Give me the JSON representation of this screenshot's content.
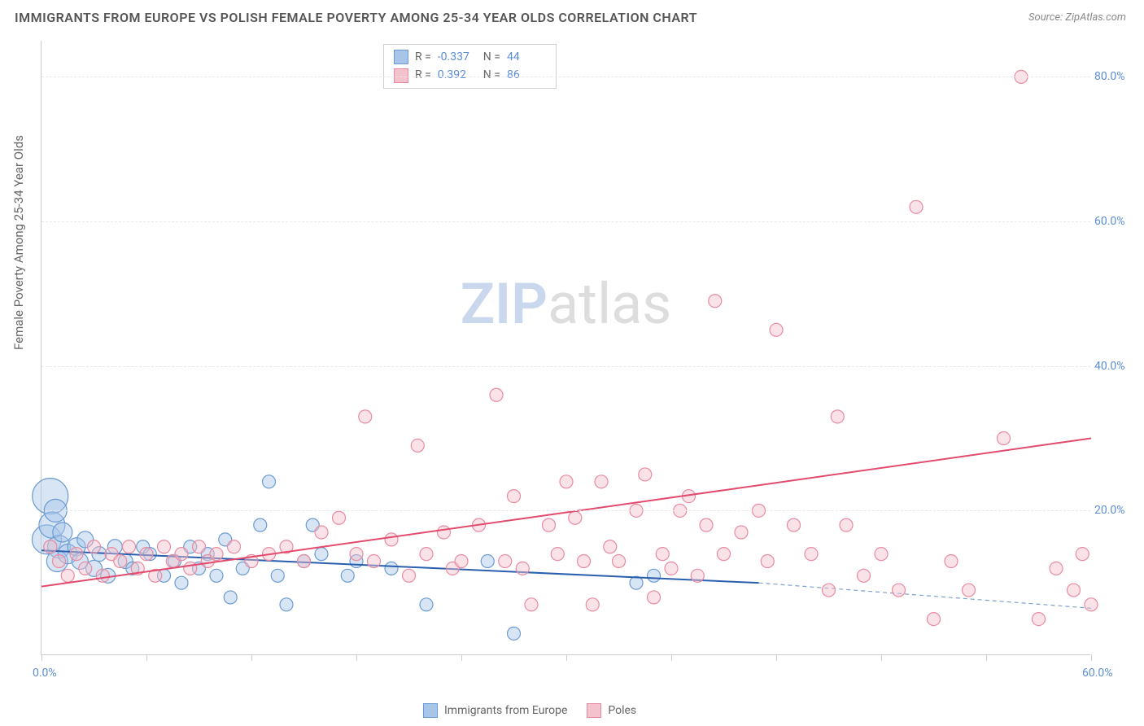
{
  "title": "IMMIGRANTS FROM EUROPE VS POLISH FEMALE POVERTY AMONG 25-34 YEAR OLDS CORRELATION CHART",
  "source": "Source: ZipAtlas.com",
  "watermark": {
    "zip": "ZIP",
    "atlas": "atlas"
  },
  "y_axis_label": "Female Poverty Among 25-34 Year Olds",
  "chart": {
    "type": "scatter",
    "xlim": [
      0,
      60
    ],
    "ylim": [
      0,
      85
    ],
    "x_ticks": [
      0,
      6,
      12,
      18,
      24,
      30,
      36,
      42,
      48,
      54,
      60
    ],
    "x_tick_labels": {
      "0": "0.0%",
      "60": "60.0%"
    },
    "y_ticks": [
      20,
      40,
      60,
      80
    ],
    "y_tick_labels": {
      "20": "20.0%",
      "40": "40.0%",
      "60": "60.0%",
      "80": "80.0%"
    },
    "grid_color": "#e8e8e8",
    "axis_color": "#cccccc",
    "tick_label_color": "#5b8dd6",
    "background_color": "#ffffff",
    "series": [
      {
        "name": "Immigrants from Europe",
        "color_fill": "#a7c5e8",
        "color_stroke": "#6c9bd1",
        "fill_opacity": 0.45,
        "marker_radius": 8,
        "trend": {
          "x1": 0,
          "y1": 14.5,
          "x2": 41,
          "y2": 10.0,
          "dashed_x2": 60,
          "dashed_y2": 6.5,
          "line_color": "#2a5fb0",
          "line_width": 2
        },
        "R": "-0.337",
        "N": "44",
        "points": [
          {
            "x": 0.5,
            "y": 22,
            "r": 22
          },
          {
            "x": 0.3,
            "y": 16,
            "r": 18
          },
          {
            "x": 0.6,
            "y": 18,
            "r": 16
          },
          {
            "x": 0.8,
            "y": 20,
            "r": 14
          },
          {
            "x": 1.0,
            "y": 15,
            "r": 14
          },
          {
            "x": 0.9,
            "y": 13,
            "r": 13
          },
          {
            "x": 1.2,
            "y": 17,
            "r": 12
          },
          {
            "x": 1.5,
            "y": 14,
            "r": 12
          },
          {
            "x": 2.0,
            "y": 15,
            "r": 11
          },
          {
            "x": 2.2,
            "y": 13,
            "r": 10
          },
          {
            "x": 2.5,
            "y": 16,
            "r": 10
          },
          {
            "x": 3.0,
            "y": 12,
            "r": 10
          },
          {
            "x": 3.3,
            "y": 14,
            "r": 9
          },
          {
            "x": 3.8,
            "y": 11,
            "r": 9
          },
          {
            "x": 4.2,
            "y": 15,
            "r": 9
          },
          {
            "x": 4.8,
            "y": 13,
            "r": 9
          },
          {
            "x": 5.2,
            "y": 12,
            "r": 8
          },
          {
            "x": 5.8,
            "y": 15,
            "r": 8
          },
          {
            "x": 6.2,
            "y": 14,
            "r": 8
          },
          {
            "x": 7.0,
            "y": 11,
            "r": 8
          },
          {
            "x": 7.6,
            "y": 13,
            "r": 8
          },
          {
            "x": 8.0,
            "y": 10,
            "r": 8
          },
          {
            "x": 8.5,
            "y": 15,
            "r": 8
          },
          {
            "x": 9.0,
            "y": 12,
            "r": 8
          },
          {
            "x": 9.5,
            "y": 14,
            "r": 8
          },
          {
            "x": 10.0,
            "y": 11,
            "r": 8
          },
          {
            "x": 10.5,
            "y": 16,
            "r": 8
          },
          {
            "x": 10.8,
            "y": 8,
            "r": 8
          },
          {
            "x": 11.5,
            "y": 12,
            "r": 8
          },
          {
            "x": 12.5,
            "y": 18,
            "r": 8
          },
          {
            "x": 13.0,
            "y": 24,
            "r": 8
          },
          {
            "x": 13.5,
            "y": 11,
            "r": 8
          },
          {
            "x": 14.0,
            "y": 7,
            "r": 8
          },
          {
            "x": 15.0,
            "y": 13,
            "r": 8
          },
          {
            "x": 15.5,
            "y": 18,
            "r": 8
          },
          {
            "x": 16.0,
            "y": 14,
            "r": 8
          },
          {
            "x": 17.5,
            "y": 11,
            "r": 8
          },
          {
            "x": 18.0,
            "y": 13,
            "r": 8
          },
          {
            "x": 20.0,
            "y": 12,
            "r": 8
          },
          {
            "x": 22.0,
            "y": 7,
            "r": 8
          },
          {
            "x": 25.5,
            "y": 13,
            "r": 8
          },
          {
            "x": 27.0,
            "y": 3,
            "r": 8
          },
          {
            "x": 34.0,
            "y": 10,
            "r": 8
          },
          {
            "x": 35.0,
            "y": 11,
            "r": 8
          }
        ]
      },
      {
        "name": "Poles",
        "color_fill": "#f4c2cd",
        "color_stroke": "#e88ba0",
        "fill_opacity": 0.45,
        "marker_radius": 8,
        "trend": {
          "x1": 0,
          "y1": 9.5,
          "x2": 60,
          "y2": 30.0,
          "line_color": "#e24a6e",
          "line_width": 2
        },
        "R": "0.392",
        "N": "86",
        "points": [
          {
            "x": 0.5,
            "y": 15,
            "r": 8
          },
          {
            "x": 1.0,
            "y": 13,
            "r": 8
          },
          {
            "x": 1.5,
            "y": 11,
            "r": 8
          },
          {
            "x": 2.0,
            "y": 14,
            "r": 8
          },
          {
            "x": 2.5,
            "y": 12,
            "r": 8
          },
          {
            "x": 3.0,
            "y": 15,
            "r": 8
          },
          {
            "x": 3.5,
            "y": 11,
            "r": 8
          },
          {
            "x": 4.0,
            "y": 14,
            "r": 8
          },
          {
            "x": 4.5,
            "y": 13,
            "r": 8
          },
          {
            "x": 5.0,
            "y": 15,
            "r": 8
          },
          {
            "x": 5.5,
            "y": 12,
            "r": 8
          },
          {
            "x": 6.0,
            "y": 14,
            "r": 8
          },
          {
            "x": 6.5,
            "y": 11,
            "r": 8
          },
          {
            "x": 7.0,
            "y": 15,
            "r": 8
          },
          {
            "x": 7.5,
            "y": 13,
            "r": 8
          },
          {
            "x": 8.0,
            "y": 14,
            "r": 8
          },
          {
            "x": 8.5,
            "y": 12,
            "r": 8
          },
          {
            "x": 9.0,
            "y": 15,
            "r": 8
          },
          {
            "x": 9.5,
            "y": 13,
            "r": 8
          },
          {
            "x": 10.0,
            "y": 14,
            "r": 8
          },
          {
            "x": 11.0,
            "y": 15,
            "r": 8
          },
          {
            "x": 12.0,
            "y": 13,
            "r": 8
          },
          {
            "x": 13.0,
            "y": 14,
            "r": 8
          },
          {
            "x": 14.0,
            "y": 15,
            "r": 8
          },
          {
            "x": 15.0,
            "y": 13,
            "r": 8
          },
          {
            "x": 16.0,
            "y": 17,
            "r": 8
          },
          {
            "x": 17.0,
            "y": 19,
            "r": 8
          },
          {
            "x": 18.0,
            "y": 14,
            "r": 8
          },
          {
            "x": 18.5,
            "y": 33,
            "r": 8
          },
          {
            "x": 19.0,
            "y": 13,
            "r": 8
          },
          {
            "x": 20.0,
            "y": 16,
            "r": 8
          },
          {
            "x": 21.0,
            "y": 11,
            "r": 8
          },
          {
            "x": 21.5,
            "y": 29,
            "r": 8
          },
          {
            "x": 22.0,
            "y": 14,
            "r": 8
          },
          {
            "x": 23.0,
            "y": 17,
            "r": 8
          },
          {
            "x": 23.5,
            "y": 12,
            "r": 8
          },
          {
            "x": 24.0,
            "y": 13,
            "r": 8
          },
          {
            "x": 25.0,
            "y": 18,
            "r": 8
          },
          {
            "x": 26.0,
            "y": 36,
            "r": 8
          },
          {
            "x": 26.5,
            "y": 13,
            "r": 8
          },
          {
            "x": 27.0,
            "y": 22,
            "r": 8
          },
          {
            "x": 27.5,
            "y": 12,
            "r": 8
          },
          {
            "x": 28.0,
            "y": 7,
            "r": 8
          },
          {
            "x": 29.0,
            "y": 18,
            "r": 8
          },
          {
            "x": 29.5,
            "y": 14,
            "r": 8
          },
          {
            "x": 30.0,
            "y": 24,
            "r": 8
          },
          {
            "x": 30.5,
            "y": 19,
            "r": 8
          },
          {
            "x": 31.0,
            "y": 13,
            "r": 8
          },
          {
            "x": 31.5,
            "y": 7,
            "r": 8
          },
          {
            "x": 32.0,
            "y": 24,
            "r": 8
          },
          {
            "x": 32.5,
            "y": 15,
            "r": 8
          },
          {
            "x": 33.0,
            "y": 13,
            "r": 8
          },
          {
            "x": 34.0,
            "y": 20,
            "r": 8
          },
          {
            "x": 34.5,
            "y": 25,
            "r": 8
          },
          {
            "x": 35.0,
            "y": 8,
            "r": 8
          },
          {
            "x": 35.5,
            "y": 14,
            "r": 8
          },
          {
            "x": 36.0,
            "y": 12,
            "r": 8
          },
          {
            "x": 36.5,
            "y": 20,
            "r": 8
          },
          {
            "x": 37.0,
            "y": 22,
            "r": 8
          },
          {
            "x": 37.5,
            "y": 11,
            "r": 8
          },
          {
            "x": 38.0,
            "y": 18,
            "r": 8
          },
          {
            "x": 38.5,
            "y": 49,
            "r": 8
          },
          {
            "x": 39.0,
            "y": 14,
            "r": 8
          },
          {
            "x": 40.0,
            "y": 17,
            "r": 8
          },
          {
            "x": 41.0,
            "y": 20,
            "r": 8
          },
          {
            "x": 41.5,
            "y": 13,
            "r": 8
          },
          {
            "x": 42.0,
            "y": 45,
            "r": 8
          },
          {
            "x": 43.0,
            "y": 18,
            "r": 8
          },
          {
            "x": 44.0,
            "y": 14,
            "r": 8
          },
          {
            "x": 45.0,
            "y": 9,
            "r": 8
          },
          {
            "x": 45.5,
            "y": 33,
            "r": 8
          },
          {
            "x": 46.0,
            "y": 18,
            "r": 8
          },
          {
            "x": 47.0,
            "y": 11,
            "r": 8
          },
          {
            "x": 48.0,
            "y": 14,
            "r": 8
          },
          {
            "x": 49.0,
            "y": 9,
            "r": 8
          },
          {
            "x": 50.0,
            "y": 62,
            "r": 8
          },
          {
            "x": 51.0,
            "y": 5,
            "r": 8
          },
          {
            "x": 52.0,
            "y": 13,
            "r": 8
          },
          {
            "x": 53.0,
            "y": 9,
            "r": 8
          },
          {
            "x": 55.0,
            "y": 30,
            "r": 8
          },
          {
            "x": 56.0,
            "y": 80,
            "r": 8
          },
          {
            "x": 57.0,
            "y": 5,
            "r": 8
          },
          {
            "x": 58.0,
            "y": 12,
            "r": 8
          },
          {
            "x": 59.0,
            "y": 9,
            "r": 8
          },
          {
            "x": 59.5,
            "y": 14,
            "r": 8
          },
          {
            "x": 60.0,
            "y": 7,
            "r": 8
          }
        ]
      }
    ]
  },
  "legend_top": {
    "R_label": "R =",
    "N_label": "N ="
  },
  "legend_bottom": [
    {
      "label": "Immigrants from Europe",
      "fill": "#a7c5e8",
      "stroke": "#6c9bd1"
    },
    {
      "label": "Poles",
      "fill": "#f4c2cd",
      "stroke": "#e88ba0"
    }
  ]
}
